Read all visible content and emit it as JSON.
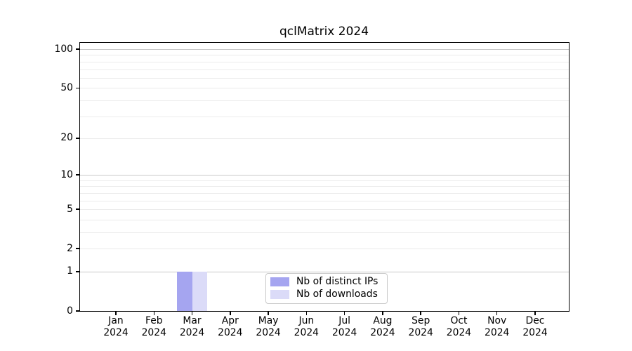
{
  "chart_data": {
    "type": "bar",
    "title": "qclMatrix 2024",
    "x": [
      "Jan",
      "Feb",
      "Mar",
      "Apr",
      "May",
      "Jun",
      "Jul",
      "Aug",
      "Sep",
      "Oct",
      "Nov",
      "Dec"
    ],
    "x_year": "2024",
    "series": [
      {
        "name": "Nb of distinct IPs",
        "color": "#a5a5f0",
        "values": [
          0,
          0,
          1,
          0,
          0,
          0,
          0,
          0,
          0,
          0,
          0,
          0
        ]
      },
      {
        "name": "Nb of downloads",
        "color": "#dbdbf8",
        "values": [
          0,
          0,
          1,
          0,
          0,
          0,
          0,
          0,
          0,
          0,
          0,
          0
        ]
      }
    ],
    "yscale": "log1p",
    "yticks": [
      0,
      1,
      2,
      5,
      10,
      20,
      50,
      100
    ],
    "ylim": [
      0,
      112
    ],
    "grid": {
      "major": [
        1,
        10,
        100
      ],
      "minor": [
        2,
        3,
        4,
        5,
        6,
        7,
        8,
        9,
        20,
        30,
        40,
        50,
        60,
        70,
        80,
        90
      ],
      "major_color": "#c8c8c8",
      "minor_color": "#ebebeb"
    },
    "legend_position": "lower center",
    "xlabel": "",
    "ylabel": ""
  },
  "colors": {
    "background": "#ffffff",
    "spine": "#000000",
    "text": "#000000",
    "legend_border": "#c9c9c9"
  }
}
